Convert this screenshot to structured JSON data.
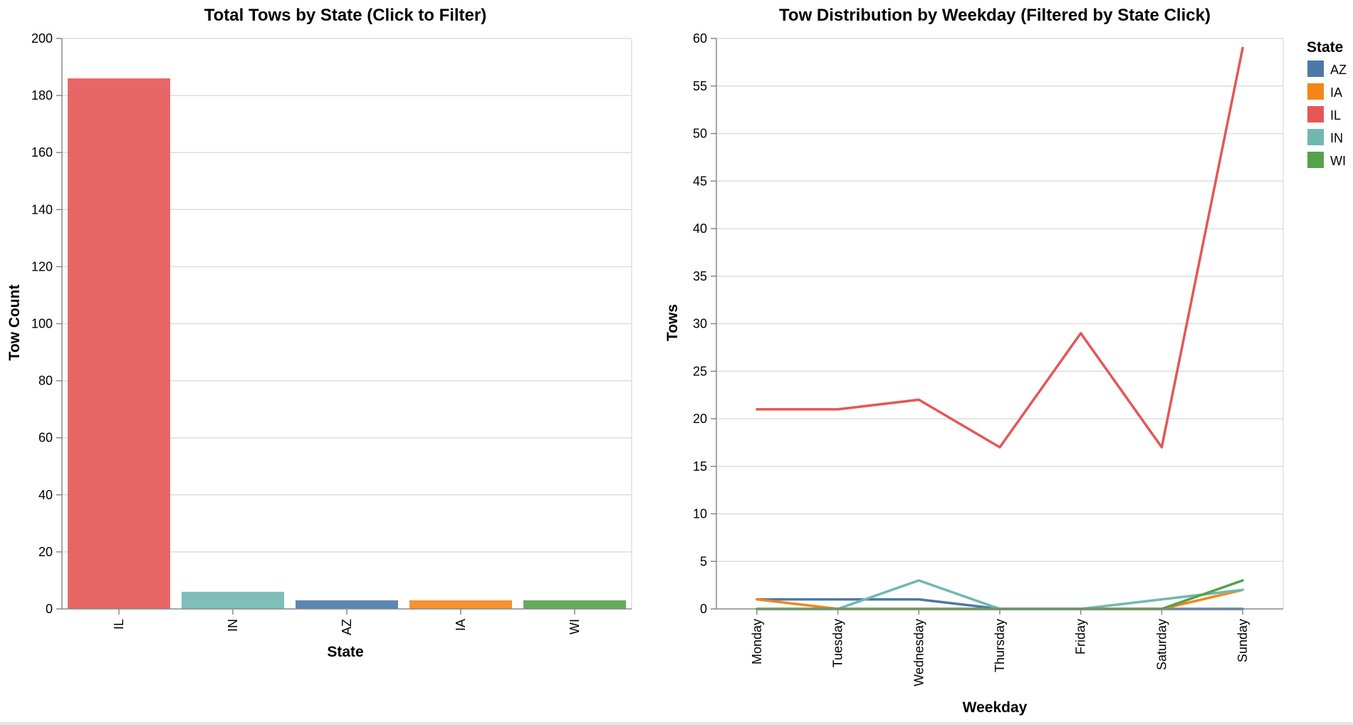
{
  "colors": {
    "AZ": "#4c78a8",
    "IA": "#f58518",
    "IL": "#e45756",
    "IN": "#72b7b2",
    "WI": "#54a24b"
  },
  "chart_data": [
    {
      "type": "bar",
      "title": "Total Tows by State (Click to Filter)",
      "xlabel": "State",
      "ylabel": "Tow Count",
      "categories": [
        "IL",
        "IN",
        "AZ",
        "IA",
        "WI"
      ],
      "values": [
        186,
        6,
        3,
        3,
        3
      ],
      "ylim": [
        0,
        200
      ],
      "yticks": [
        0,
        20,
        40,
        60,
        80,
        100,
        120,
        140,
        160,
        180,
        200
      ],
      "grid": true,
      "legend": "none"
    },
    {
      "type": "line",
      "title": "Tow Distribution by Weekday (Filtered by State Click)",
      "xlabel": "Weekday",
      "ylabel": "Tows",
      "x": [
        "Monday",
        "Tuesday",
        "Wednesday",
        "Thursday",
        "Friday",
        "Saturday",
        "Sunday"
      ],
      "series": [
        {
          "name": "AZ",
          "values": [
            1,
            1,
            1,
            0,
            0,
            0,
            0
          ]
        },
        {
          "name": "IA",
          "values": [
            1,
            0,
            0,
            0,
            0,
            0,
            2
          ]
        },
        {
          "name": "IL",
          "values": [
            21,
            21,
            22,
            17,
            29,
            17,
            59
          ]
        },
        {
          "name": "IN",
          "values": [
            0,
            0,
            3,
            0,
            0,
            1,
            2
          ]
        },
        {
          "name": "WI",
          "values": [
            0,
            0,
            0,
            0,
            0,
            0,
            3
          ]
        }
      ],
      "ylim": [
        0,
        60
      ],
      "yticks": [
        0,
        5,
        10,
        15,
        20,
        25,
        30,
        35,
        40,
        45,
        50,
        55,
        60
      ],
      "grid": true,
      "legend_title": "State",
      "legend": "right-top"
    }
  ]
}
